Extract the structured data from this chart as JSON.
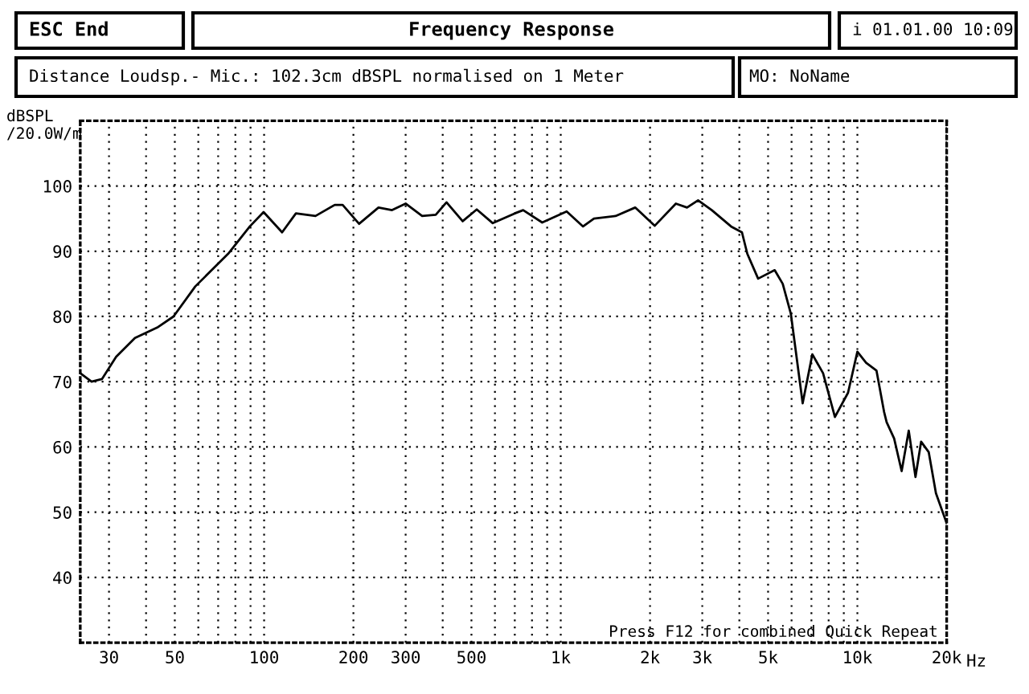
{
  "chart_data": {
    "type": "line",
    "title": "Frequency Response",
    "subtitle": "Distance Loudsp.- Mic.: 102.3cm dBSPL normalised on 1 Meter",
    "ylabel": "dBSPL\n/20.0W/m",
    "annotations": [
      "ESC End",
      "i 01.01.00 10:09",
      "MO: NoName",
      "Press F12 for combined Quick Repeat"
    ],
    "log": "x",
    "grid": true,
    "line_style": "solid",
    "marker": "none",
    "xlim": [
      24,
      20000
    ],
    "ylim": [
      30,
      110
    ],
    "xticks": [
      30,
      {
        "value": 40,
        "label": null
      },
      50,
      {
        "value": 60,
        "label": null
      },
      {
        "value": 70,
        "label": null
      },
      {
        "value": 80,
        "label": null
      },
      {
        "value": 90,
        "label": null
      },
      100,
      200,
      300,
      {
        "value": 400,
        "label": null
      },
      500,
      {
        "value": 600,
        "label": null
      },
      {
        "value": 700,
        "label": null
      },
      {
        "value": 800,
        "label": null
      },
      {
        "value": 900,
        "label": null
      },
      {
        "value": 1000,
        "label": "1k"
      },
      {
        "value": 2000,
        "label": "2k"
      },
      {
        "value": 3000,
        "label": "3k"
      },
      {
        "value": 4000,
        "label": null
      },
      {
        "value": 5000,
        "label": "5k"
      },
      {
        "value": 6000,
        "label": null
      },
      {
        "value": 7000,
        "label": null
      },
      {
        "value": 8000,
        "label": null
      },
      {
        "value": 9000,
        "label": null
      },
      {
        "value": 10000,
        "label": "10k"
      },
      {
        "value": 20000,
        "label": "20k"
      }
    ],
    "xlabel": "Hz",
    "yticks": [
      40,
      50,
      60,
      70,
      80,
      90,
      100
    ],
    "series": [
      {
        "color": "#000000",
        "x": [
          24,
          26.2,
          28.4,
          31.7,
          36.7,
          43.6,
          49.5,
          58.6,
          75.6,
          89.5,
          99.6,
          115,
          128,
          149,
          173,
          184,
          209,
          243,
          270,
          300,
          341,
          379,
          412,
          467,
          521,
          590,
          700,
          747,
          866,
          1047,
          1189,
          1294,
          1530,
          1782,
          2073,
          2444,
          2665,
          2904,
          3230,
          3751,
          4082,
          4256,
          4628,
          5262,
          5602,
          5967,
          6540,
          7050,
          7662,
          8400,
          9300,
          10000,
          10700,
          11600,
          12300,
          12550,
          13300,
          14100,
          14900,
          15700,
          16400,
          17400,
          18400,
          20000
        ],
        "values": [
          71.3,
          70,
          70.4,
          73.8,
          76.7,
          78.3,
          80,
          84.6,
          89.6,
          93.8,
          96,
          92.9,
          95.8,
          95.4,
          97.1,
          97.1,
          94.2,
          96.7,
          96.3,
          97.3,
          95.4,
          95.6,
          97.5,
          94.6,
          96.4,
          94.3,
          95.8,
          96.3,
          94.4,
          96.1,
          93.8,
          95,
          95.4,
          96.7,
          93.9,
          97.3,
          96.7,
          97.8,
          96.3,
          93.8,
          92.9,
          89.6,
          85.8,
          87.1,
          85,
          80.4,
          66.7,
          74.2,
          71.3,
          64.6,
          68.3,
          74.6,
          72.9,
          71.7,
          65.4,
          63.8,
          61.3,
          56.3,
          62.5,
          55.4,
          60.8,
          59.2,
          52.9,
          48.3
        ]
      }
    ]
  }
}
